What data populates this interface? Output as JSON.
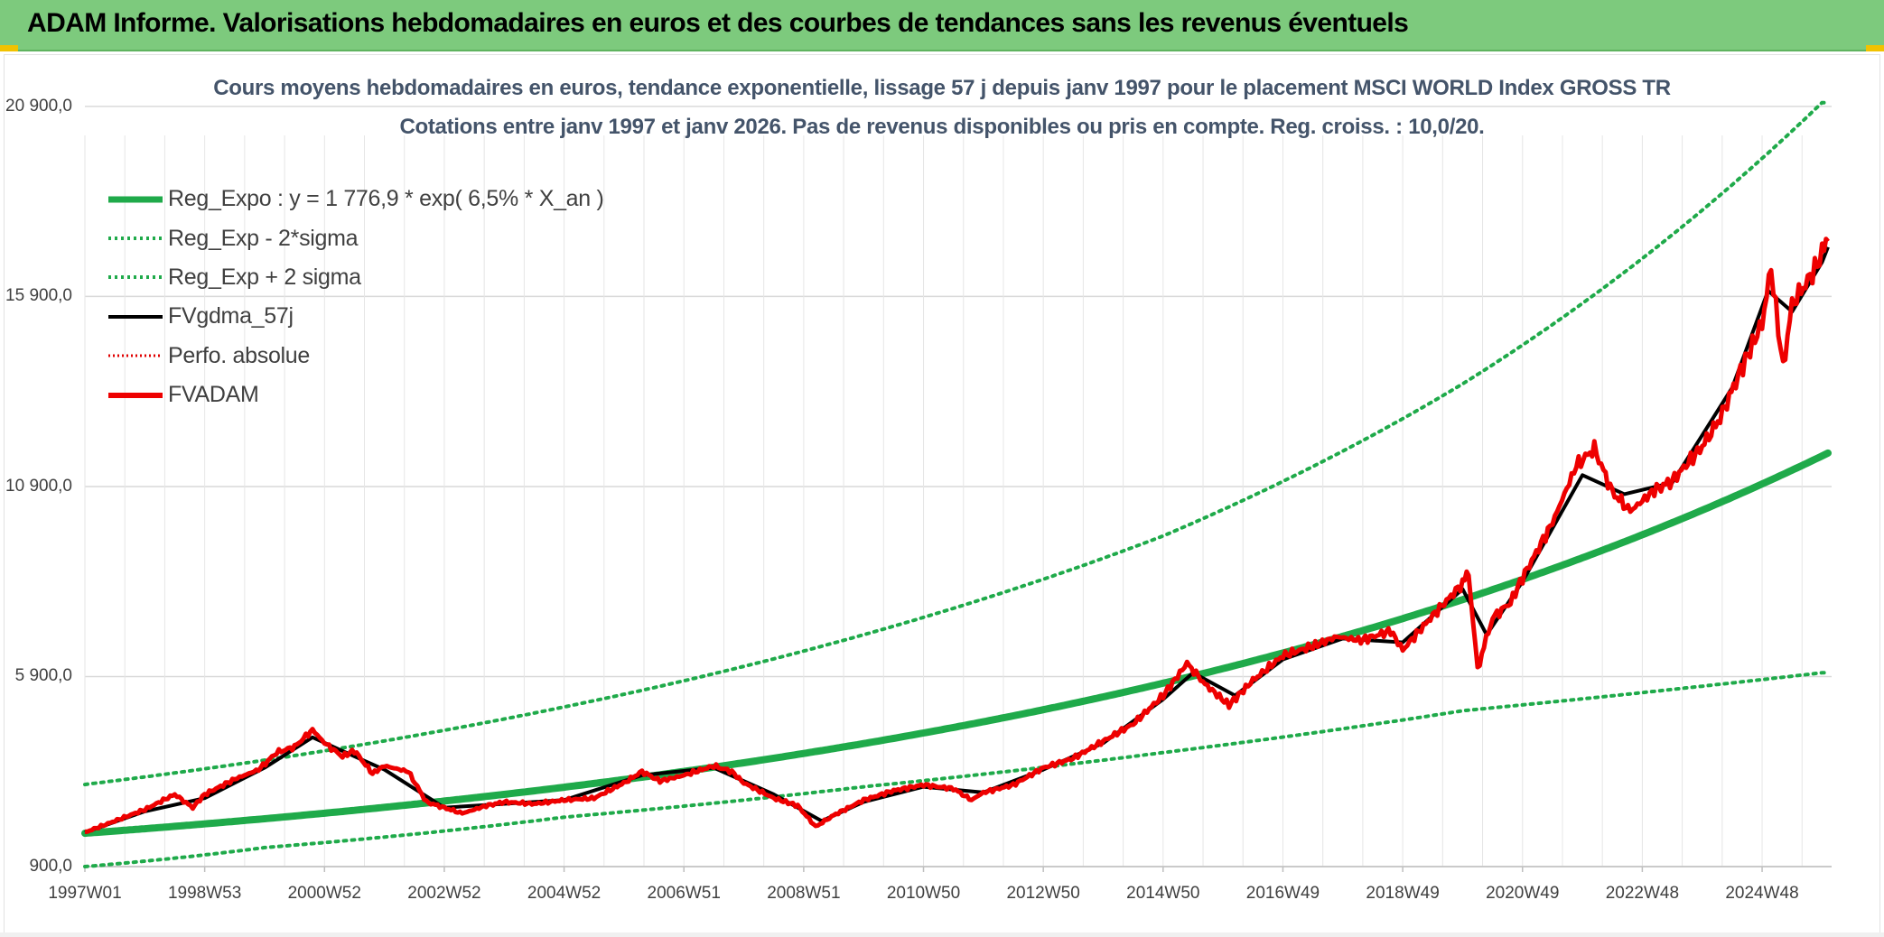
{
  "banner": {
    "title": "ADAM Informe. Valorisations hebdomadaires en euros et des courbes de tendances sans les revenus éventuels"
  },
  "colors": {
    "banner_bg": "#7dca7d",
    "reg_expo": "#1faa4a",
    "sigma_band": "#1faa4a",
    "fvgdma": "#000000",
    "perfo": "#e00000",
    "fvadam": "#ee0000",
    "grid": "#d9d9d9",
    "title_text": "#44546a"
  },
  "chart_data": {
    "type": "line",
    "title_lines": [
      "Cours moyens hebdomadaires en euros, tendance exponentielle, lissage 57 j depuis janv 1997 pour le placement MSCI WORLD Index GROSS TR",
      "Cotations entre janv 1997 et janv 2026. Pas de revenus disponibles ou pris en compte. Reg. croiss. : 10,0/20."
    ],
    "y_ticks": [
      900,
      5900,
      10900,
      15900,
      20900
    ],
    "y_tick_labels": [
      "900,0",
      "5 900,0",
      "10 900,0",
      "15 900,0",
      "20 900,0"
    ],
    "ylim": [
      900,
      21800
    ],
    "xlim": [
      1997.0,
      2026.1
    ],
    "x_tick_years": [
      1997.0,
      1999.0,
      2001.0,
      2003.0,
      2005.0,
      2007.0,
      2009.0,
      2011.0,
      2013.0,
      2015.0,
      2017.0,
      2019.0,
      2021.0,
      2023.0,
      2025.0
    ],
    "x_tick_labels": [
      "1997W01",
      "1998W53",
      "2000W52",
      "2002W52",
      "2004W52",
      "2006W51",
      "2008W51",
      "2010W50",
      "2012W50",
      "2014W50",
      "2016W49",
      "2018W49",
      "2020W49",
      "2022W48",
      "2024W48"
    ],
    "grid": true,
    "legend_position": "top-left",
    "legend": [
      {
        "label": "Reg_Expo : y = 1 776,9 * exp( 6,5% *  X_an )",
        "style": "solid-thick",
        "color": "#1faa4a"
      },
      {
        "label": "Reg_Exp - 2*sigma",
        "style": "dotted",
        "color": "#1faa4a"
      },
      {
        "label": "Reg_Exp + 2 sigma",
        "style": "dotted",
        "color": "#1faa4a"
      },
      {
        "label": "FVgdma_57j",
        "style": "solid",
        "color": "#000000"
      },
      {
        "label": "Perfo. absolue",
        "style": "dotted",
        "color": "#e00000"
      },
      {
        "label": "FVADAM",
        "style": "solid-thick",
        "color": "#ee0000"
      }
    ],
    "regression": {
      "a": 1776.9,
      "rate": 0.065,
      "x0_year": 1997.0,
      "lower_values": [
        [
          1997.0,
          900
        ],
        [
          2000.0,
          1400
        ],
        [
          2005.0,
          2200
        ],
        [
          2010.0,
          3000
        ],
        [
          2015.0,
          3900
        ],
        [
          2020.0,
          5000
        ],
        [
          2026.0,
          6000
        ]
      ],
      "upper_values": [
        [
          1997.0,
          3060
        ],
        [
          2000.0,
          3700
        ],
        [
          2005.0,
          5100
        ],
        [
          2010.0,
          7000
        ],
        [
          2015.0,
          9600
        ],
        [
          2020.0,
          13600
        ],
        [
          2026.0,
          21000
        ]
      ]
    },
    "series": [
      {
        "name": "FVADAM",
        "points": [
          [
            1997.0,
            1800
          ],
          [
            1997.5,
            2100
          ],
          [
            1998.0,
            2400
          ],
          [
            1998.5,
            2800
          ],
          [
            1998.8,
            2450
          ],
          [
            1999.0,
            2800
          ],
          [
            1999.5,
            3200
          ],
          [
            1999.9,
            3450
          ],
          [
            2000.2,
            3900
          ],
          [
            2000.5,
            4050
          ],
          [
            2000.8,
            4500
          ],
          [
            2001.0,
            4150
          ],
          [
            2001.3,
            3800
          ],
          [
            2001.5,
            3950
          ],
          [
            2001.8,
            3350
          ],
          [
            2002.0,
            3550
          ],
          [
            2002.4,
            3400
          ],
          [
            2002.7,
            2600
          ],
          [
            2003.0,
            2450
          ],
          [
            2003.3,
            2300
          ],
          [
            2003.7,
            2500
          ],
          [
            2004.0,
            2600
          ],
          [
            2004.5,
            2550
          ],
          [
            2005.0,
            2650
          ],
          [
            2005.5,
            2700
          ],
          [
            2006.0,
            3100
          ],
          [
            2006.3,
            3400
          ],
          [
            2006.6,
            3150
          ],
          [
            2007.0,
            3300
          ],
          [
            2007.5,
            3550
          ],
          [
            2007.8,
            3400
          ],
          [
            2008.0,
            3100
          ],
          [
            2008.5,
            2700
          ],
          [
            2008.9,
            2500
          ],
          [
            2009.2,
            1950
          ],
          [
            2009.5,
            2250
          ],
          [
            2010.0,
            2650
          ],
          [
            2010.5,
            2900
          ],
          [
            2011.0,
            3050
          ],
          [
            2011.5,
            2950
          ],
          [
            2011.8,
            2650
          ],
          [
            2012.0,
            2850
          ],
          [
            2012.5,
            3050
          ],
          [
            2013.0,
            3500
          ],
          [
            2013.5,
            3750
          ],
          [
            2014.0,
            4200
          ],
          [
            2014.5,
            4650
          ],
          [
            2015.0,
            5400
          ],
          [
            2015.4,
            6250
          ],
          [
            2015.7,
            5700
          ],
          [
            2016.1,
            5150
          ],
          [
            2016.5,
            5800
          ],
          [
            2017.0,
            6450
          ],
          [
            2017.5,
            6700
          ],
          [
            2017.9,
            6950
          ],
          [
            2018.3,
            6850
          ],
          [
            2018.8,
            7100
          ],
          [
            2019.0,
            6600
          ],
          [
            2019.5,
            7500
          ],
          [
            2020.0,
            8350
          ],
          [
            2020.1,
            8600
          ],
          [
            2020.25,
            6100
          ],
          [
            2020.5,
            7450
          ],
          [
            2020.8,
            7850
          ],
          [
            2021.0,
            8500
          ],
          [
            2021.5,
            9950
          ],
          [
            2021.9,
            11450
          ],
          [
            2022.2,
            11900
          ],
          [
            2022.5,
            10750
          ],
          [
            2022.8,
            10250
          ],
          [
            2023.2,
            10800
          ],
          [
            2023.5,
            11050
          ],
          [
            2024.0,
            11950
          ],
          [
            2024.3,
            12700
          ],
          [
            2024.6,
            13800
          ],
          [
            2025.0,
            15200
          ],
          [
            2025.15,
            16650
          ],
          [
            2025.35,
            14000
          ],
          [
            2025.5,
            15700
          ],
          [
            2025.8,
            16400
          ],
          [
            2026.0,
            17000
          ],
          [
            2026.1,
            17350
          ]
        ]
      },
      {
        "name": "FVgdma_57j",
        "points": [
          [
            1997.0,
            1800
          ],
          [
            1998.0,
            2350
          ],
          [
            1999.0,
            2700
          ],
          [
            2000.0,
            3500
          ],
          [
            2000.8,
            4300
          ],
          [
            2001.5,
            3800
          ],
          [
            2002.0,
            3450
          ],
          [
            2003.0,
            2450
          ],
          [
            2004.0,
            2550
          ],
          [
            2005.0,
            2650
          ],
          [
            2006.3,
            3300
          ],
          [
            2007.5,
            3500
          ],
          [
            2008.5,
            2800
          ],
          [
            2009.3,
            2100
          ],
          [
            2010.0,
            2600
          ],
          [
            2011.0,
            3000
          ],
          [
            2012.0,
            2850
          ],
          [
            2013.0,
            3450
          ],
          [
            2014.0,
            4150
          ],
          [
            2015.0,
            5300
          ],
          [
            2015.5,
            6000
          ],
          [
            2016.2,
            5400
          ],
          [
            2017.0,
            6350
          ],
          [
            2018.0,
            6900
          ],
          [
            2019.0,
            6800
          ],
          [
            2020.0,
            8200
          ],
          [
            2020.4,
            7000
          ],
          [
            2021.0,
            8400
          ],
          [
            2022.0,
            11200
          ],
          [
            2022.7,
            10700
          ],
          [
            2023.5,
            11000
          ],
          [
            2024.5,
            13500
          ],
          [
            2025.1,
            16050
          ],
          [
            2025.5,
            15500
          ],
          [
            2026.0,
            16800
          ],
          [
            2026.1,
            17200
          ]
        ]
      }
    ]
  }
}
